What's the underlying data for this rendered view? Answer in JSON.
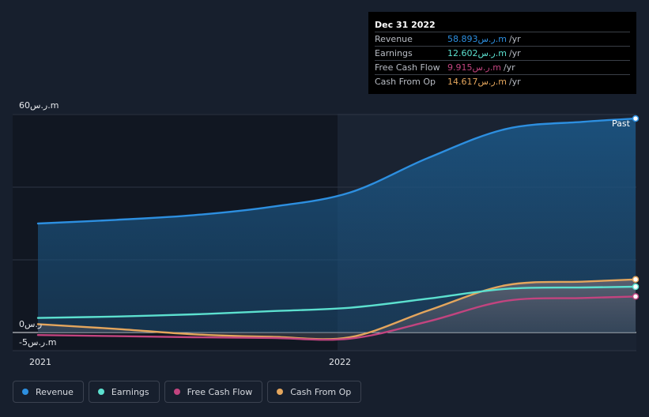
{
  "chart_data": {
    "type": "area",
    "yunit_prefix": "ر.س",
    "y_tick_labels": [
      "60ر.س.m",
      "0ر.س",
      "-5ر.س.m"
    ],
    "x_tick_labels": [
      "2021",
      "2022"
    ],
    "ylim": [
      -5,
      60
    ],
    "past_label": "Past",
    "x": [
      "2021-01",
      "2021-04",
      "2021-07",
      "2021-10",
      "2022-01",
      "2022-04",
      "2022-07",
      "2022-10",
      "2022-12"
    ],
    "series": [
      {
        "name": "Revenue",
        "color": "#2d8fe0",
        "values": [
          30.0,
          31.0,
          32.3,
          34.6,
          38.5,
          48.0,
          56.0,
          58.0,
          58.893
        ]
      },
      {
        "name": "Earnings",
        "color": "#5ce0cf",
        "values": [
          4.0,
          4.4,
          5.0,
          5.9,
          6.8,
          9.3,
          12.0,
          12.4,
          12.602
        ]
      },
      {
        "name": "Free Cash Flow",
        "color": "#c2447f",
        "values": [
          -0.7,
          -1.0,
          -1.3,
          -1.5,
          -1.7,
          3.0,
          8.7,
          9.5,
          9.915
        ]
      },
      {
        "name": "Cash From Op",
        "color": "#e4a65d",
        "values": [
          2.3,
          1.0,
          -0.5,
          -1.2,
          -1.3,
          6.0,
          13.0,
          14.0,
          14.617
        ]
      }
    ],
    "grid": true,
    "legend_position": "bottom-left"
  },
  "tooltip": {
    "date": "Dec 31 2022",
    "rows": [
      {
        "label": "Revenue",
        "value": "58.893ر.س.m",
        "unit": "/yr",
        "color": "#2d8fe0"
      },
      {
        "label": "Earnings",
        "value": "12.602ر.س.m",
        "unit": "/yr",
        "color": "#5ce0cf"
      },
      {
        "label": "Free Cash Flow",
        "value": "9.915ر.س.m",
        "unit": "/yr",
        "color": "#c2447f"
      },
      {
        "label": "Cash From Op",
        "value": "14.617ر.س.m",
        "unit": "/yr",
        "color": "#e4a65d"
      }
    ]
  },
  "legend": [
    {
      "label": "Revenue",
      "color": "#2d8fe0"
    },
    {
      "label": "Earnings",
      "color": "#5ce0cf"
    },
    {
      "label": "Free Cash Flow",
      "color": "#c2447f"
    },
    {
      "label": "Cash From Op",
      "color": "#e4a65d"
    }
  ]
}
